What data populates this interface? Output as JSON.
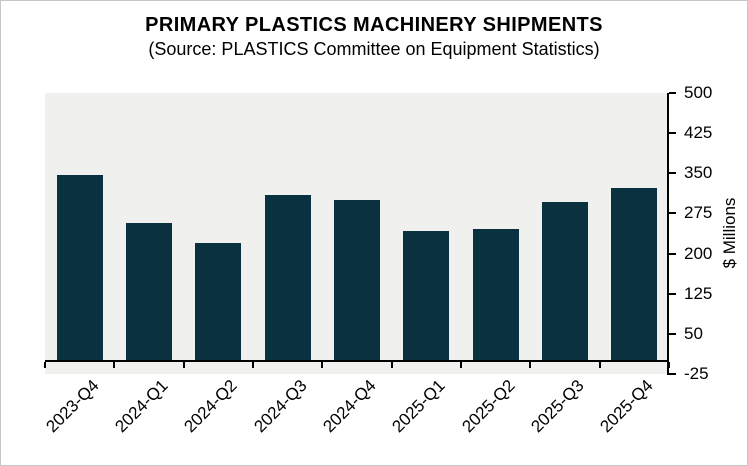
{
  "page": {
    "background": "#ffffff",
    "border_color": "#c6c6c6"
  },
  "chart_data": {
    "type": "bar",
    "title": "PRIMARY PLASTICS MACHINERY SHIPMENTS",
    "subtitle": "(Source: PLASTICS Committee on Equipment Statistics)",
    "categories": [
      "2023-Q4",
      "2024-Q1",
      "2024-Q2",
      "2024-Q3",
      "2024-Q4",
      "2025-Q1",
      "2025-Q2",
      "2025-Q3",
      "2025-Q4"
    ],
    "values": [
      347,
      257,
      219,
      309,
      300,
      243,
      246,
      297,
      322
    ],
    "xlabel": "",
    "ylabel": "$ Millions",
    "ylim": [
      -25,
      500
    ],
    "y_ticks": [
      500,
      425,
      350,
      275,
      200,
      125,
      50,
      -25
    ],
    "y_axis_side": "right",
    "x_tick_rotation": -45,
    "grid": false,
    "legend": "none",
    "bar_color": "#0a3140",
    "plot_background": "#f0f0ee",
    "axis_color": "#000000"
  }
}
